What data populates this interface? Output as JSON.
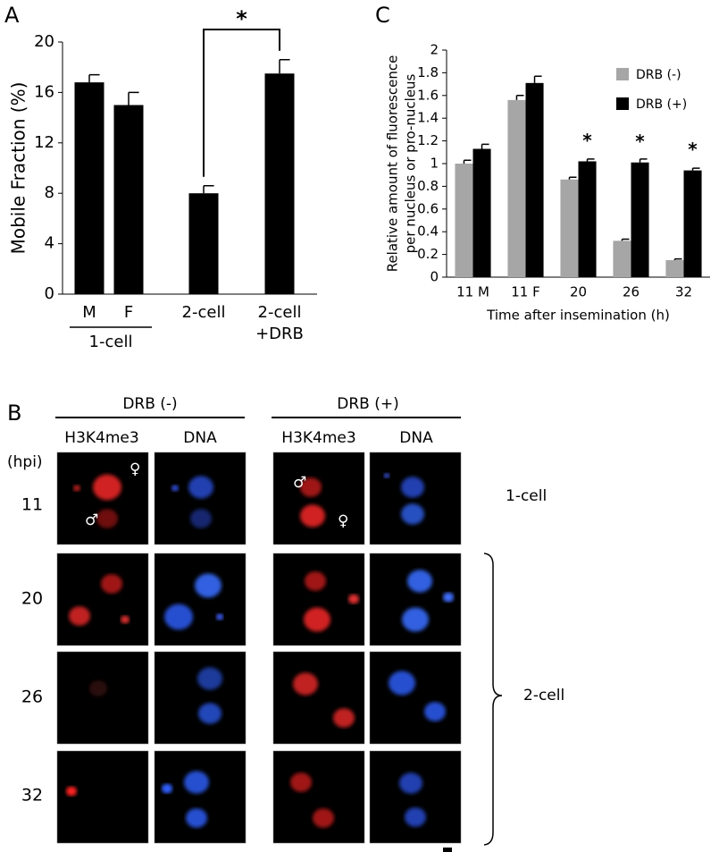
{
  "chart_data": [
    {
      "type": "bar",
      "panel_label": "A",
      "ylabel": "Mobile Fraction (%)",
      "categories": [
        "M",
        "F",
        "2-cell",
        [
          "2-cell",
          "+DRB"
        ]
      ],
      "group_label": "1-cell",
      "values": [
        16.8,
        15.0,
        8.0,
        17.5
      ],
      "errors": [
        0.6,
        1.0,
        0.6,
        1.1
      ],
      "color": "#000000",
      "ylim": [
        0,
        20
      ],
      "yticks": [
        0,
        4,
        8,
        12,
        16,
        20
      ],
      "significance": "*"
    },
    {
      "type": "bar",
      "panel_label": "C",
      "ylabel": [
        "Relative amount of fluorescence",
        "per nucleus or pro-nucleus"
      ],
      "xlabel": "Time after insemination (h)",
      "categories": [
        "11 M",
        "11 F",
        "20",
        "26",
        "32"
      ],
      "series": [
        {
          "name": "DRB (-)",
          "color": "#a6a6a6",
          "values": [
            1.0,
            1.56,
            0.86,
            0.32,
            0.15
          ],
          "errors": [
            0.03,
            0.04,
            0.02,
            0.015,
            0.01
          ]
        },
        {
          "name": "DRB (+)",
          "color": "#000000",
          "values": [
            1.13,
            1.71,
            1.02,
            1.01,
            0.94
          ],
          "errors": [
            0.04,
            0.06,
            0.02,
            0.03,
            0.02
          ]
        }
      ],
      "ylim": [
        0,
        2
      ],
      "yticks": [
        0,
        0.2,
        0.4,
        0.6,
        0.8,
        1,
        1.2,
        1.4,
        1.6,
        1.8,
        2
      ],
      "legend": "top-right",
      "annotations": [
        "*",
        "*",
        "*"
      ]
    }
  ],
  "panel_b": {
    "label": "B",
    "groups": [
      "DRB (-)",
      "DRB (+)"
    ],
    "columns": [
      "H3K4me3",
      "DNA",
      "H3K4me3",
      "DNA"
    ],
    "row_header": "(hpi)",
    "rows": [
      "11",
      "20",
      "26",
      "32"
    ],
    "stages": [
      "1-cell",
      "2-cell"
    ],
    "symbols": [
      "♀",
      "♂",
      "♂",
      "♀"
    ]
  }
}
